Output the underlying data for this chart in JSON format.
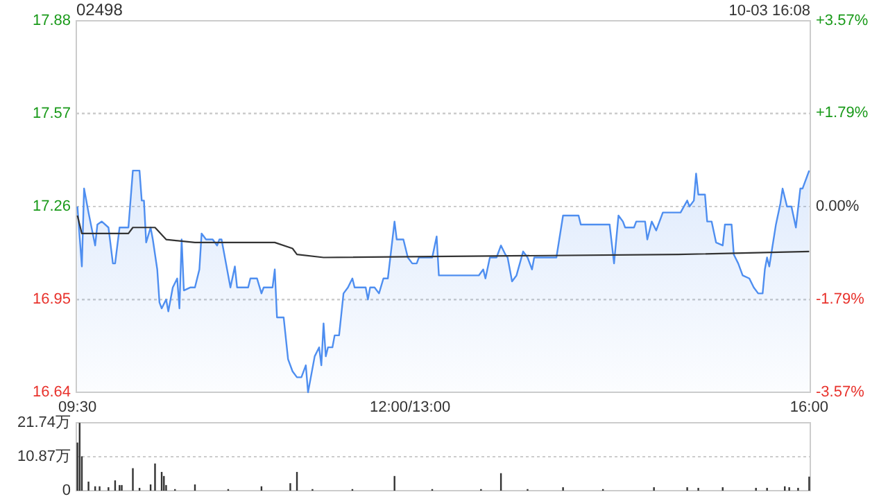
{
  "chart_data": [
    {
      "type": "area",
      "title": "02498",
      "annotations": [
        "10-03 16:08"
      ],
      "categories": [
        null,
        null,
        null,
        null,
        null,
        null,
        null,
        null,
        null,
        null,
        null,
        null,
        null,
        null,
        null,
        null,
        null,
        null,
        null,
        null,
        null,
        null,
        null,
        null,
        null,
        null,
        null,
        null,
        null,
        null,
        null,
        null,
        null,
        null,
        null,
        null,
        null,
        null,
        null,
        null,
        null,
        null,
        null,
        null,
        null,
        null,
        null,
        null,
        null,
        null,
        null,
        null,
        null,
        null,
        null,
        null,
        null,
        null,
        null,
        null,
        null,
        null,
        null,
        null,
        null,
        null,
        null,
        null,
        null,
        null,
        null,
        null,
        null,
        null,
        null,
        null,
        null,
        null,
        null,
        null,
        null,
        null,
        null,
        null,
        null,
        null,
        null,
        null,
        null,
        null,
        null,
        null,
        null,
        null,
        null,
        null,
        null,
        null,
        null,
        null,
        null,
        null,
        null,
        null,
        null,
        null,
        null,
        null,
        null,
        null,
        null,
        null,
        null,
        null,
        null,
        null,
        null,
        null,
        null,
        null,
        null,
        null,
        null,
        null,
        null,
        null,
        null,
        null,
        null,
        null,
        null,
        null,
        null,
        null,
        null,
        null,
        null,
        null,
        null,
        null,
        null,
        null,
        null,
        null,
        null,
        null,
        null,
        null,
        null,
        null,
        null,
        null,
        null,
        null,
        null,
        null,
        null,
        null,
        null,
        null,
        null,
        null,
        null,
        null,
        null,
        null,
        null,
        null,
        null,
        null,
        null,
        null,
        null,
        null,
        null,
        null,
        null,
        null,
        null,
        null,
        null,
        null,
        null,
        null,
        null,
        null,
        null,
        null,
        null,
        null,
        null,
        null,
        null,
        null,
        null,
        null,
        null,
        null,
        null,
        null,
        null,
        null,
        null,
        null,
        null,
        null,
        null,
        null,
        null,
        null,
        null,
        null,
        null,
        null,
        null,
        null,
        null,
        null,
        null,
        null,
        null,
        null,
        null,
        null,
        null,
        null,
        null,
        null,
        null,
        null,
        null,
        null,
        null,
        null,
        null,
        null,
        null,
        null,
        null,
        null,
        null,
        null,
        null,
        null,
        null,
        null,
        null,
        null,
        null,
        null,
        null,
        null,
        null,
        null,
        null,
        null,
        null,
        null,
        null,
        null,
        null,
        null,
        null,
        null,
        null,
        null,
        null,
        null,
        null,
        null,
        null,
        null,
        null,
        null,
        null,
        null,
        null,
        null,
        null,
        null,
        null,
        null,
        null,
        null,
        null,
        null,
        null,
        null,
        null,
        null,
        null,
        null,
        null,
        null,
        null,
        null,
        null,
        null,
        null,
        null,
        null,
        null,
        null,
        null,
        null,
        null,
        null,
        null,
        null,
        null,
        null,
        null,
        null,
        null,
        null,
        null,
        null,
        null,
        null,
        null,
        null,
        null,
        null,
        null,
        null,
        null,
        null,
        null,
        null,
        null,
        null
      ],
      "series": [
        {
          "color": "#4e8ef0",
          "values": [
            17.26,
            null,
            17.06,
            17.32,
            null,
            17.24,
            null,
            null,
            17.13,
            17.2,
            null,
            17.21,
            null,
            null,
            17.19,
            null,
            17.07,
            17.07,
            null,
            17.19,
            null,
            null,
            null,
            17.19,
            null,
            17.38,
            null,
            null,
            17.38,
            17.28,
            17.28,
            17.14,
            null,
            17.19,
            17.15,
            null,
            17.05,
            16.94,
            16.92,
            null,
            16.95,
            16.91,
            null,
            16.99,
            null,
            17.02,
            16.92,
            17.15,
            16.98,
            null,
            null,
            16.99,
            null,
            16.99,
            null,
            17.05,
            17.17,
            null,
            17.15,
            null,
            null,
            17.15,
            null,
            17.13,
            17.15,
            17.15,
            null,
            17.07,
            null,
            16.99,
            null,
            17.06,
            16.99,
            null,
            null,
            null,
            null,
            16.99,
            17.02,
            null,
            null,
            17.02,
            null,
            16.97,
            16.99,
            null,
            null,
            null,
            16.99,
            17.05,
            16.89,
            null,
            null,
            16.89,
            null,
            16.75,
            null,
            16.71,
            null,
            16.69,
            null,
            16.69,
            null,
            16.73,
            16.64,
            null,
            null,
            16.76,
            null,
            16.79,
            16.73,
            16.87,
            16.76,
            16.79,
            null,
            16.79,
            16.83,
            null,
            16.83,
            null,
            16.97,
            null,
            16.99,
            null,
            17.02,
            16.99,
            null,
            null,
            null,
            null,
            16.99,
            16.95,
            16.99,
            null,
            16.99,
            null,
            16.97,
            null,
            17.02,
            null,
            17.02,
            null,
            null,
            17.21,
            17.15,
            null,
            null,
            17.15,
            null,
            17.09,
            null,
            17.07,
            null,
            17.07,
            17.09,
            null,
            null,
            null,
            null,
            null,
            17.09,
            null,
            17.16,
            17.03,
            null,
            null,
            null,
            null,
            null,
            null,
            null,
            null,
            null,
            null,
            null,
            null,
            null,
            null,
            null,
            null,
            null,
            17.03,
            null,
            17.05,
            17.02,
            null,
            17.09,
            null,
            null,
            17.09,
            null,
            17.13,
            null,
            17.1,
            17.09,
            null,
            17.01,
            null,
            17.03,
            null,
            null,
            17.11,
            null,
            17.09,
            null,
            17.05,
            17.09,
            null,
            null,
            null,
            null,
            null,
            null,
            null,
            null,
            null,
            17.09,
            null,
            null,
            17.23,
            null,
            17.23,
            null,
            null,
            null,
            null,
            17.23,
            17.2,
            null,
            null,
            null,
            null,
            null,
            null,
            null,
            null,
            null,
            null,
            null,
            null,
            17.2,
            null,
            17.07,
            null,
            17.23,
            null,
            17.21,
            17.19,
            null,
            null,
            null,
            17.19,
            17.21,
            null,
            null,
            null,
            17.21,
            17.15,
            null,
            17.21,
            null,
            17.18,
            null,
            null,
            17.24,
            null,
            null,
            null,
            null,
            null,
            null,
            null,
            17.24,
            null,
            null,
            17.28,
            17.26,
            null,
            17.28,
            17.37,
            17.3,
            null,
            null,
            17.3,
            17.21,
            null,
            17.21,
            null,
            17.14,
            null,
            null,
            17.13,
            17.2,
            null,
            null,
            17.2,
            17.1,
            null,
            17.07,
            null,
            17.03,
            null,
            null,
            17.02,
            null,
            16.99,
            null,
            16.97,
            null,
            16.97,
            17.05,
            17.09,
            17.06,
            null,
            null,
            17.2,
            null,
            17.27,
            17.32,
            null,
            17.26,
            null,
            17.26,
            null,
            17.19,
            null,
            17.32,
            17.32,
            null,
            null,
            17.38
          ]
        },
        {
          "type": "line",
          "color": "#333333",
          "values": [
            17.23,
            null,
            17.17,
            null,
            null,
            null,
            null,
            null,
            null,
            null,
            null,
            null,
            null,
            null,
            null,
            null,
            null,
            null,
            null,
            null,
            null,
            null,
            null,
            17.17,
            null,
            17.19,
            null,
            null,
            null,
            null,
            null,
            null,
            null,
            null,
            null,
            17.19,
            null,
            null,
            null,
            null,
            17.15,
            null,
            null,
            null,
            null,
            null,
            null,
            null,
            null,
            null,
            null,
            null,
            null,
            17.14,
            null,
            null,
            null,
            null,
            null,
            null,
            null,
            null,
            null,
            null,
            null,
            null,
            null,
            null,
            null,
            null,
            null,
            null,
            null,
            null,
            null,
            null,
            null,
            null,
            null,
            null,
            null,
            null,
            null,
            null,
            null,
            null,
            null,
            null,
            null,
            17.14,
            null,
            null,
            null,
            null,
            null,
            null,
            null,
            17.12,
            null,
            17.1,
            null,
            null,
            null,
            null,
            null,
            null,
            null,
            null,
            null,
            null,
            null,
            17.09,
            null,
            null,
            null,
            null,
            null,
            null,
            null,
            null,
            null,
            null,
            null,
            null,
            null,
            null,
            null,
            null,
            null,
            null,
            null,
            null,
            null,
            null,
            null,
            null,
            null,
            null,
            null,
            null,
            null,
            null,
            null,
            null,
            null,
            null,
            null,
            null,
            null,
            null,
            null,
            null,
            null,
            null,
            null,
            null,
            null,
            null,
            null,
            null,
            null,
            null,
            null,
            null,
            null,
            null,
            null,
            null,
            null,
            null,
            null,
            null,
            null,
            null,
            null,
            null,
            null,
            null,
            null,
            null,
            null,
            null,
            null,
            null,
            null,
            null,
            null,
            null,
            null,
            null,
            null,
            null,
            null,
            null,
            null,
            null,
            null,
            null,
            null,
            null,
            null,
            null,
            null,
            null,
            null,
            null,
            null,
            null,
            null,
            null,
            null,
            null,
            null,
            null,
            null,
            null,
            null,
            null,
            null,
            null,
            null,
            null,
            null,
            null,
            null,
            null,
            null,
            null,
            null,
            null,
            null,
            null,
            null,
            null,
            null,
            null,
            null,
            null,
            null,
            null,
            null,
            null,
            null,
            null,
            null,
            null,
            null,
            null,
            null,
            null,
            null,
            null,
            null,
            null,
            null,
            null,
            null,
            null,
            null,
            null,
            null,
            null,
            null,
            null,
            null,
            null,
            null,
            null,
            null,
            null,
            null,
            17.1,
            null,
            null,
            null,
            null,
            null,
            null,
            null,
            null,
            null,
            null,
            null,
            null,
            null,
            null,
            null,
            null,
            null,
            null,
            null,
            null,
            null,
            null,
            null,
            null,
            null,
            null,
            null,
            null,
            null,
            null,
            null,
            null,
            null,
            null,
            null,
            null,
            null,
            null,
            null,
            null,
            null,
            null,
            null,
            null,
            null,
            null,
            null,
            null,
            null,
            null,
            null,
            null,
            null,
            null,
            null,
            null,
            null,
            null,
            17.11
          ]
        }
      ],
      "ylim": [
        16.64,
        17.88
      ],
      "yticks": [
        16.64,
        16.95,
        17.26,
        17.57,
        17.88
      ],
      "y2lim": [
        -3.57,
        3.57
      ],
      "y2ticks": [
        {
          "value": -3.57,
          "label": "-3.57%"
        },
        {
          "value": -1.79,
          "label": "-1.79%"
        },
        {
          "value": 0,
          "label": "0.00%"
        },
        {
          "value": 1.79,
          "label": "+1.79%"
        },
        {
          "value": 3.57,
          "label": "+3.57%"
        }
      ],
      "grid": true
    },
    {
      "type": "bar",
      "color": "#333333",
      "categories": [
        "09:30",
        null,
        null,
        null,
        null,
        null,
        null,
        null,
        null,
        null,
        null,
        null,
        null,
        null,
        null,
        null,
        null,
        null,
        null,
        null,
        null,
        null,
        null,
        null,
        null,
        null,
        null,
        null,
        null,
        null,
        null,
        null,
        null,
        null,
        null,
        null,
        null,
        null,
        null,
        null,
        null,
        null,
        null,
        null,
        null,
        null,
        null,
        null,
        null,
        null,
        null,
        null,
        null,
        null,
        null,
        null,
        null,
        null,
        null,
        null,
        null,
        null,
        null,
        null,
        null,
        null,
        null,
        null,
        null,
        null,
        null,
        null,
        null,
        null,
        null,
        null,
        null,
        null,
        null,
        null,
        null,
        null,
        null,
        null,
        null,
        null,
        null,
        null,
        null,
        null,
        null,
        null,
        null,
        null,
        null,
        null,
        null,
        null,
        null,
        null,
        null,
        null,
        null,
        null,
        null,
        null,
        null,
        null,
        null,
        null,
        null,
        null,
        null,
        null,
        null,
        null,
        null,
        null,
        null,
        null,
        null,
        null,
        null,
        null,
        null,
        null,
        null,
        null,
        null,
        null,
        null,
        null,
        null,
        null,
        null,
        null,
        null,
        null,
        null,
        null,
        null,
        null,
        null,
        null,
        null,
        null,
        null,
        null,
        null,
        null,
        "12:00/13:00",
        null,
        null,
        null,
        null,
        null,
        null,
        null,
        null,
        null,
        null,
        null,
        null,
        null,
        null,
        null,
        null,
        null,
        null,
        null,
        null,
        null,
        null,
        null,
        null,
        null,
        null,
        null,
        null,
        null,
        null,
        null,
        null,
        null,
        null,
        null,
        null,
        null,
        null,
        null,
        null,
        null,
        null,
        null,
        null,
        null,
        null,
        null,
        null,
        null,
        null,
        null,
        null,
        null,
        null,
        null,
        null,
        null,
        null,
        null,
        null,
        null,
        null,
        null,
        null,
        null,
        null,
        null,
        null,
        null,
        null,
        null,
        null,
        null,
        null,
        null,
        null,
        null,
        null,
        null,
        null,
        null,
        null,
        null,
        null,
        null,
        null,
        null,
        null,
        null,
        null,
        null,
        null,
        null,
        null,
        null,
        null,
        null,
        null,
        null,
        null,
        null,
        null,
        null,
        null,
        null,
        null,
        null,
        null,
        null,
        null,
        null,
        null,
        null,
        null,
        null,
        null,
        null,
        null,
        null,
        null,
        null,
        null,
        null,
        null,
        null,
        null,
        null,
        null,
        null,
        null,
        null,
        null,
        null,
        null,
        null,
        null,
        null,
        null,
        null,
        null,
        null,
        null,
        null,
        null,
        null,
        null,
        null,
        null,
        null,
        null,
        null,
        null,
        null,
        null,
        null,
        null,
        null,
        null,
        null,
        null,
        null,
        null,
        null,
        null,
        null,
        null,
        null,
        null,
        null,
        null,
        null,
        null,
        null,
        null,
        null,
        null,
        null,
        null,
        null,
        "16:00"
      ],
      "values": [
        15.4,
        21.7,
        11.0,
        null,
        null,
        2.9,
        null,
        null,
        1.4,
        null,
        1.4,
        null,
        null,
        null,
        1.1,
        null,
        null,
        3.3,
        null,
        1.8,
        1.8,
        null,
        null,
        null,
        null,
        7.2,
        null,
        null,
        0.9,
        null,
        null,
        null,
        null,
        2.0,
        null,
        8.7,
        null,
        null,
        6.0,
        4.7,
        1.8,
        null,
        null,
        null,
        0.5,
        null,
        null,
        null,
        null,
        null,
        null,
        null,
        null,
        2.0,
        null,
        null,
        null,
        null,
        null,
        null,
        null,
        null,
        null,
        null,
        null,
        null,
        null,
        null,
        0.5,
        null,
        null,
        null,
        null,
        null,
        null,
        null,
        null,
        null,
        null,
        null,
        null,
        null,
        null,
        1.4,
        null,
        null,
        null,
        null,
        null,
        null,
        null,
        null,
        null,
        null,
        null,
        null,
        2.4,
        null,
        null,
        6.0,
        null,
        null,
        null,
        null,
        null,
        null,
        0.5,
        null,
        null,
        null,
        null,
        null,
        null,
        null,
        null,
        null,
        null,
        null,
        null,
        null,
        null,
        null,
        null,
        null,
        0.5,
        null,
        null,
        null,
        null,
        null,
        null,
        null,
        null,
        null,
        null,
        null,
        null,
        null,
        null,
        null,
        null,
        null,
        null,
        4.7,
        null,
        null,
        null,
        null,
        null,
        null,
        null,
        null,
        null,
        null,
        null,
        null,
        null,
        null,
        null,
        null,
        0.5,
        null,
        null,
        null,
        null,
        null,
        null,
        null,
        null,
        null,
        null,
        null,
        null,
        null,
        null,
        null,
        null,
        null,
        null,
        null,
        null,
        null,
        0.5,
        null,
        null,
        null,
        null,
        null,
        null,
        null,
        null,
        5.6,
        null,
        null,
        null,
        null,
        null,
        null,
        null,
        null,
        null,
        null,
        null,
        0.5,
        null,
        null,
        null,
        null,
        null,
        null,
        null,
        null,
        null,
        null,
        null,
        null,
        null,
        null,
        null,
        1.1,
        null,
        null,
        null,
        null,
        null,
        null,
        null,
        null,
        null,
        null,
        null,
        null,
        null,
        null,
        null,
        null,
        null,
        0.5,
        null,
        null,
        null,
        null,
        null,
        null,
        null,
        null,
        null,
        null,
        null,
        null,
        null,
        null,
        null,
        null,
        null,
        null,
        null,
        null,
        null,
        null,
        1.1,
        null,
        null,
        null,
        null,
        null,
        null,
        null,
        null,
        null,
        null,
        null,
        null,
        null,
        null,
        1.1,
        null,
        null,
        null,
        null,
        0.9,
        null,
        null,
        null,
        null,
        null,
        null,
        null,
        null,
        null,
        null,
        1.1,
        null,
        null,
        null,
        null,
        null,
        null,
        null,
        null,
        null,
        null,
        null,
        null,
        null,
        null,
        0.9,
        null,
        null,
        null,
        null,
        0.9,
        null,
        null,
        null,
        null,
        null,
        null,
        null,
        1.4,
        null,
        1.1,
        null,
        null,
        null,
        0.9,
        null,
        null,
        null,
        null,
        4.5
      ],
      "ylim": [
        0,
        21.74
      ],
      "yticks": [
        0,
        {
          "value": 10.87,
          "label": "10.87万"
        },
        {
          "value": 21.74,
          "label": "21.74万"
        }
      ],
      "grid": "y"
    }
  ]
}
